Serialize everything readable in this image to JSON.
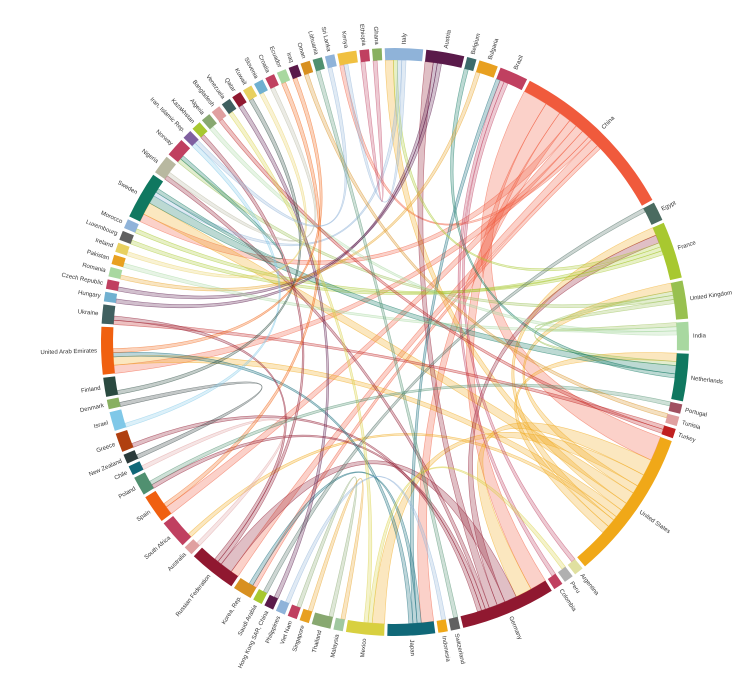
{
  "chart_data": {
    "type": "chord",
    "nodes": [
      {
        "name": "Italy",
        "value": 4,
        "color": "#8fb3d9"
      },
      {
        "name": "Austria",
        "value": 4,
        "color": "#5a1a4a"
      },
      {
        "name": "Belgium",
        "value": 1,
        "color": "#3d6b6b"
      },
      {
        "name": "Bulgaria",
        "value": 2,
        "color": "#e8a020"
      },
      {
        "name": "Brazil",
        "value": 3,
        "color": "#c04060"
      },
      {
        "name": "China",
        "value": 18,
        "color": "#f05a3c"
      },
      {
        "name": "Egypt",
        "value": 2,
        "color": "#4a6b60"
      },
      {
        "name": "France",
        "value": 6,
        "color": "#a8c830"
      },
      {
        "name": "United Kingdom",
        "value": 4,
        "color": "#98c050"
      },
      {
        "name": "India",
        "value": 3,
        "color": "#a8d8a0"
      },
      {
        "name": "Netherlands",
        "value": 5,
        "color": "#107860"
      },
      {
        "name": "Portugal",
        "value": 1,
        "color": "#a05060"
      },
      {
        "name": "Tunisia",
        "value": 1,
        "color": "#e0a0a0"
      },
      {
        "name": "Turkey",
        "value": 1,
        "color": "#c02020"
      },
      {
        "name": "United States",
        "value": 16,
        "color": "#f0a818"
      },
      {
        "name": "Argentina",
        "value": 1,
        "color": "#e0e0a0"
      },
      {
        "name": "Peru",
        "value": 1,
        "color": "#b0b0b0"
      },
      {
        "name": "Colombia",
        "value": 1,
        "color": "#c04060"
      },
      {
        "name": "Germany",
        "value": 10,
        "color": "#901830"
      },
      {
        "name": "Switzerland",
        "value": 1,
        "color": "#606060"
      },
      {
        "name": "Indonesia",
        "value": 1,
        "color": "#f0a818"
      },
      {
        "name": "Japan",
        "value": 5,
        "color": "#106878"
      },
      {
        "name": "Mexico",
        "value": 4,
        "color": "#d8d040"
      },
      {
        "name": "Malaysia",
        "value": 1,
        "color": "#a0c8a0"
      },
      {
        "name": "Thailand",
        "value": 2,
        "color": "#88a870"
      },
      {
        "name": "Singapore",
        "value": 1,
        "color": "#e8a020"
      },
      {
        "name": "Viet Nam",
        "value": 1,
        "color": "#c04060"
      },
      {
        "name": "Philippines",
        "value": 1,
        "color": "#8fb3d9"
      },
      {
        "name": "Hong Kong SAR, China",
        "value": 1,
        "color": "#5a1a4a"
      },
      {
        "name": "Saudi Arabia",
        "value": 1,
        "color": "#a8c830"
      },
      {
        "name": "Korea, Rep.",
        "value": 2,
        "color": "#d89020"
      },
      {
        "name": "Russian Federation",
        "value": 5,
        "color": "#901830"
      },
      {
        "name": "Australia",
        "value": 1,
        "color": "#e0a0a0"
      },
      {
        "name": "South Africa",
        "value": 3,
        "color": "#c04060"
      },
      {
        "name": "Spain",
        "value": 3,
        "color": "#f06010"
      },
      {
        "name": "Poland",
        "value": 2,
        "color": "#509070"
      },
      {
        "name": "Chile",
        "value": 1,
        "color": "#106878"
      },
      {
        "name": "New Zealand",
        "value": 1,
        "color": "#2a3a3a"
      },
      {
        "name": "Greece",
        "value": 2,
        "color": "#b04010"
      },
      {
        "name": "Israel",
        "value": 2,
        "color": "#80c8e8"
      },
      {
        "name": "Denmark",
        "value": 1,
        "color": "#88b060"
      },
      {
        "name": "Finland",
        "value": 2,
        "color": "#2a4a40"
      },
      {
        "name": "United Arab Emirates",
        "value": 5,
        "color": "#f06010"
      },
      {
        "name": "Ukraine",
        "value": 2,
        "color": "#406060"
      },
      {
        "name": "Hungary",
        "value": 1,
        "color": "#70b0d0"
      },
      {
        "name": "Czech Republic",
        "value": 1,
        "color": "#c04060"
      },
      {
        "name": "Romania",
        "value": 1,
        "color": "#a8d8a0"
      },
      {
        "name": "Pakistan",
        "value": 1,
        "color": "#e8a020"
      },
      {
        "name": "Ireland",
        "value": 1,
        "color": "#e8d060"
      },
      {
        "name": "Luxembourg",
        "value": 1,
        "color": "#606060"
      },
      {
        "name": "Morocco",
        "value": 1,
        "color": "#8fb3d9"
      },
      {
        "name": "Sweden",
        "value": 5,
        "color": "#107860"
      },
      {
        "name": "Nigeria",
        "value": 2,
        "color": "#b8b8a0"
      },
      {
        "name": "Norway",
        "value": 2,
        "color": "#c04060"
      },
      {
        "name": "Iran, Islamic Rep.",
        "value": 1,
        "color": "#8060a0"
      },
      {
        "name": "Kazakhstan",
        "value": 1,
        "color": "#a8c830"
      },
      {
        "name": "Algeria",
        "value": 1,
        "color": "#88a870"
      },
      {
        "name": "Bangladesh",
        "value": 1,
        "color": "#e0a0a0"
      },
      {
        "name": "Venezuela",
        "value": 1,
        "color": "#406060"
      },
      {
        "name": "Qatar",
        "value": 1,
        "color": "#901830"
      },
      {
        "name": "Kuwait",
        "value": 1,
        "color": "#e8d060"
      },
      {
        "name": "Slovenia",
        "value": 1,
        "color": "#70b0d0"
      },
      {
        "name": "Croatia",
        "value": 1,
        "color": "#c04060"
      },
      {
        "name": "Ecuador",
        "value": 1,
        "color": "#a8d8a0"
      },
      {
        "name": "Iraq",
        "value": 1,
        "color": "#5a1a4a"
      },
      {
        "name": "Oman",
        "value": 1,
        "color": "#d89020"
      },
      {
        "name": "Lithuania",
        "value": 1,
        "color": "#509070"
      },
      {
        "name": "Sri Lanka",
        "value": 1,
        "color": "#8fb3d9"
      },
      {
        "name": "Kenya",
        "value": 2,
        "color": "#f0c040"
      },
      {
        "name": "Ethiopia",
        "value": 1,
        "color": "#c04060"
      },
      {
        "name": "Ghana",
        "value": 1,
        "color": "#88b060"
      }
    ],
    "links": [
      {
        "source": 5,
        "target": 14,
        "value": 6
      },
      {
        "source": 5,
        "target": 18,
        "value": 4
      },
      {
        "source": 5,
        "target": 21,
        "value": 3
      },
      {
        "source": 5,
        "target": 51,
        "value": 2
      },
      {
        "source": 5,
        "target": 34,
        "value": 2
      },
      {
        "source": 5,
        "target": 42,
        "value": 2
      },
      {
        "source": 5,
        "target": 68,
        "value": 1
      },
      {
        "source": 5,
        "target": 31,
        "value": 2
      },
      {
        "source": 5,
        "target": 30,
        "value": 1
      },
      {
        "source": 14,
        "target": 18,
        "value": 4
      },
      {
        "source": 14,
        "target": 22,
        "value": 3
      },
      {
        "source": 14,
        "target": 8,
        "value": 2
      },
      {
        "source": 14,
        "target": 51,
        "value": 3
      },
      {
        "source": 14,
        "target": 0,
        "value": 2
      },
      {
        "source": 14,
        "target": 42,
        "value": 2
      },
      {
        "source": 14,
        "target": 33,
        "value": 1
      },
      {
        "source": 14,
        "target": 7,
        "value": 2
      },
      {
        "source": 14,
        "target": 10,
        "value": 2
      },
      {
        "source": 18,
        "target": 31,
        "value": 3
      },
      {
        "source": 18,
        "target": 7,
        "value": 2
      },
      {
        "source": 18,
        "target": 1,
        "value": 2
      },
      {
        "source": 18,
        "target": 52,
        "value": 1
      },
      {
        "source": 18,
        "target": 35,
        "value": 1
      },
      {
        "source": 18,
        "target": 38,
        "value": 1
      },
      {
        "source": 21,
        "target": 30,
        "value": 1
      },
      {
        "source": 21,
        "target": 4,
        "value": 1
      },
      {
        "source": 21,
        "target": 42,
        "value": 1
      },
      {
        "source": 8,
        "target": 10,
        "value": 1
      },
      {
        "source": 8,
        "target": 53,
        "value": 1
      },
      {
        "source": 8,
        "target": 9,
        "value": 1
      },
      {
        "source": 7,
        "target": 0,
        "value": 1
      },
      {
        "source": 7,
        "target": 49,
        "value": 1
      },
      {
        "source": 7,
        "target": 50,
        "value": 1
      },
      {
        "source": 10,
        "target": 51,
        "value": 2
      },
      {
        "source": 10,
        "target": 2,
        "value": 1
      },
      {
        "source": 0,
        "target": 51,
        "value": 1
      },
      {
        "source": 0,
        "target": 68,
        "value": 1
      },
      {
        "source": 1,
        "target": 44,
        "value": 1
      },
      {
        "source": 1,
        "target": 45,
        "value": 1
      },
      {
        "source": 3,
        "target": 46,
        "value": 1
      },
      {
        "source": 4,
        "target": 17,
        "value": 1
      },
      {
        "source": 4,
        "target": 15,
        "value": 1
      },
      {
        "source": 6,
        "target": 29,
        "value": 1
      },
      {
        "source": 9,
        "target": 47,
        "value": 1
      },
      {
        "source": 9,
        "target": 56,
        "value": 1
      },
      {
        "source": 13,
        "target": 43,
        "value": 1
      },
      {
        "source": 13,
        "target": 57,
        "value": 1
      },
      {
        "source": 22,
        "target": 16,
        "value": 1
      },
      {
        "source": 22,
        "target": 58,
        "value": 1
      },
      {
        "source": 24,
        "target": 26,
        "value": 1
      },
      {
        "source": 25,
        "target": 23,
        "value": 1
      },
      {
        "source": 27,
        "target": 20,
        "value": 1
      },
      {
        "source": 28,
        "target": 59,
        "value": 1
      },
      {
        "source": 31,
        "target": 55,
        "value": 1
      },
      {
        "source": 31,
        "target": 43,
        "value": 1
      },
      {
        "source": 32,
        "target": 36,
        "value": 1
      },
      {
        "source": 34,
        "target": 63,
        "value": 1
      },
      {
        "source": 35,
        "target": 11,
        "value": 1
      },
      {
        "source": 37,
        "target": 40,
        "value": 1
      },
      {
        "source": 39,
        "target": 54,
        "value": 1
      },
      {
        "source": 41,
        "target": 60,
        "value": 1
      },
      {
        "source": 42,
        "target": 64,
        "value": 1
      },
      {
        "source": 48,
        "target": 61,
        "value": 1
      },
      {
        "source": 51,
        "target": 53,
        "value": 1
      },
      {
        "source": 52,
        "target": 62,
        "value": 1
      },
      {
        "source": 65,
        "target": 12,
        "value": 1
      },
      {
        "source": 66,
        "target": 19,
        "value": 1
      },
      {
        "source": 67,
        "target": 54,
        "value": 1
      },
      {
        "source": 69,
        "target": 70,
        "value": 1
      }
    ]
  }
}
